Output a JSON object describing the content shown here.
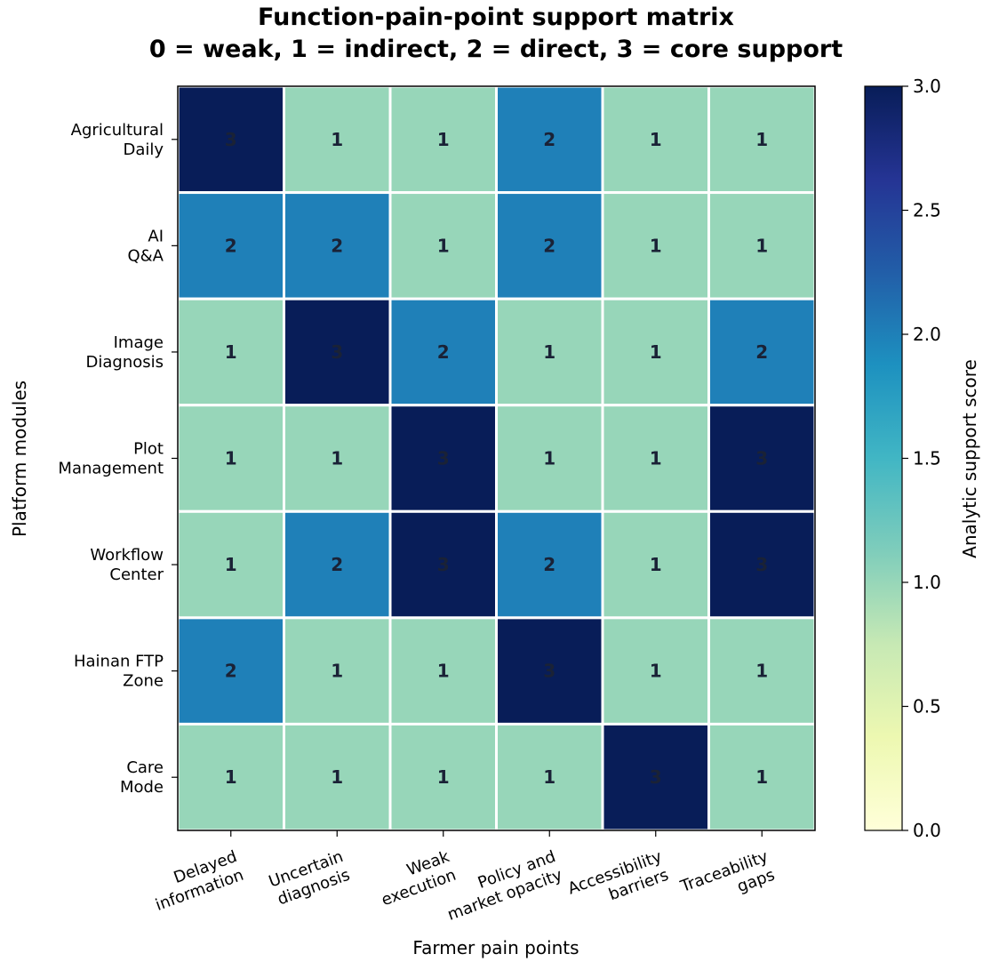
{
  "chart_data": {
    "type": "heatmap",
    "title_lines": [
      "Function-pain-point support matrix",
      "0 = weak, 1 = indirect, 2 = direct, 3 = core support"
    ],
    "xlabel": "Farmer pain points",
    "ylabel": "Platform modules",
    "x_categories": [
      [
        "Delayed",
        "information"
      ],
      [
        "Uncertain",
        "diagnosis"
      ],
      [
        "Weak",
        "execution"
      ],
      [
        "Policy and",
        "market opacity"
      ],
      [
        "Accessibility",
        "barriers"
      ],
      [
        "Traceability",
        "gaps"
      ]
    ],
    "y_categories": [
      [
        "Agricultural",
        "Daily"
      ],
      [
        "AI",
        "Q&A"
      ],
      [
        "Image",
        "Diagnosis"
      ],
      [
        "Plot",
        "Management"
      ],
      [
        "Workflow",
        "Center"
      ],
      [
        "Hainan FTP",
        "Zone"
      ],
      [
        "Care",
        "Mode"
      ]
    ],
    "values": [
      [
        3,
        1,
        1,
        2,
        1,
        1
      ],
      [
        2,
        2,
        1,
        2,
        1,
        1
      ],
      [
        1,
        3,
        2,
        1,
        1,
        2
      ],
      [
        1,
        1,
        3,
        1,
        1,
        3
      ],
      [
        1,
        2,
        3,
        2,
        1,
        3
      ],
      [
        2,
        1,
        1,
        3,
        1,
        1
      ],
      [
        1,
        1,
        1,
        1,
        3,
        1
      ]
    ],
    "colorbar": {
      "label": "Analytic support score",
      "range": [
        0,
        3
      ],
      "ticks": [
        "0.0",
        "0.5",
        "1.0",
        "1.5",
        "2.0",
        "2.5",
        "3.0"
      ],
      "colormap": "YlGnBu",
      "stops": [
        "#ffffd9",
        "#edf8b1",
        "#c7e9b4",
        "#7fcdbb",
        "#41b6c4",
        "#1d91c0",
        "#225ea8",
        "#253494",
        "#081d58"
      ]
    },
    "label_color": "#1a2236",
    "cell_border_color": "#ffffff",
    "grid": false
  }
}
